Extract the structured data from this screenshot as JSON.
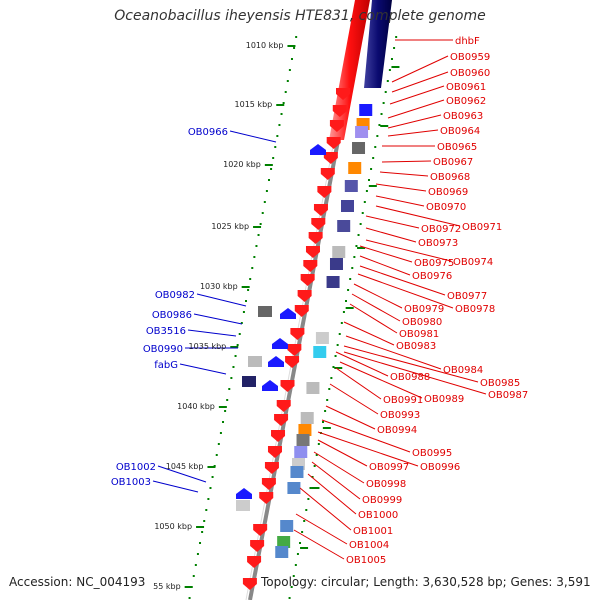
{
  "title": "Oceanobacillus iheyensis HTE831, complete genome",
  "footer": {
    "accession": "Accession: NC_004193",
    "summary": "Topology: circular; Length: 3,630,528 bp; Genes: 3,591"
  },
  "colors": {
    "forward_label": "#e00000",
    "reverse_label": "#0000cc",
    "forward_arrow": "#ff1a1a",
    "reverse_arrow": "#1a1aff",
    "tick": "#008000",
    "backbone": "#888888"
  },
  "scale": {
    "ticks": [
      {
        "label": "1010 kbp"
      },
      {
        "label": "1015 kbp"
      },
      {
        "label": "1020 kbp"
      },
      {
        "label": "1025 kbp"
      },
      {
        "label": "1030 kbp"
      },
      {
        "label": "1035 kbp"
      },
      {
        "label": "1040 kbp"
      },
      {
        "label": "1045 kbp"
      },
      {
        "label": "1050 kbp"
      },
      {
        "label": "55 kbp"
      }
    ]
  },
  "left_genes": [
    {
      "label": "OB0966"
    },
    {
      "label": "OB0982"
    },
    {
      "label": "OB0986"
    },
    {
      "label": "OB3516"
    },
    {
      "label": "OB0990"
    },
    {
      "label": "fabG"
    },
    {
      "label": "OB1002"
    },
    {
      "label": "OB1003"
    }
  ],
  "right_genes": [
    {
      "label": "dhbF"
    },
    {
      "label": "OB0959"
    },
    {
      "label": "OB0960"
    },
    {
      "label": "OB0961"
    },
    {
      "label": "OB0962"
    },
    {
      "label": "OB0963"
    },
    {
      "label": "OB0964"
    },
    {
      "label": "OB0965"
    },
    {
      "label": "OB0967"
    },
    {
      "label": "OB0968"
    },
    {
      "label": "OB0969"
    },
    {
      "label": "OB0970"
    },
    {
      "label": "OB0971"
    },
    {
      "label": "OB0972"
    },
    {
      "label": "OB0973"
    },
    {
      "label": "OB0974"
    },
    {
      "label": "OB0975"
    },
    {
      "label": "OB0976"
    },
    {
      "label": "OB0977"
    },
    {
      "label": "OB0978"
    },
    {
      "label": "OB0979"
    },
    {
      "label": "OB0980"
    },
    {
      "label": "OB0981"
    },
    {
      "label": "OB0983"
    },
    {
      "label": "OB0984"
    },
    {
      "label": "OB0985"
    },
    {
      "label": "OB0987"
    },
    {
      "label": "OB0988"
    },
    {
      "label": "OB0989"
    },
    {
      "label": "OB0991"
    },
    {
      "label": "OB0993"
    },
    {
      "label": "OB0994"
    },
    {
      "label": "OB0995"
    },
    {
      "label": "OB0996"
    },
    {
      "label": "OB0997"
    },
    {
      "label": "OB0998"
    },
    {
      "label": "OB0999"
    },
    {
      "label": "OB1000"
    },
    {
      "label": "OB1001"
    },
    {
      "label": "OB1004"
    },
    {
      "label": "OB1005"
    }
  ]
}
